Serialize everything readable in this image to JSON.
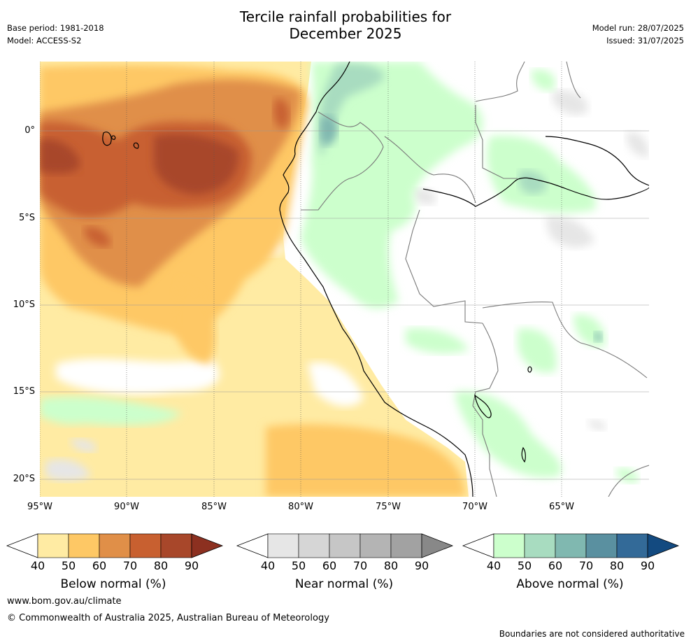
{
  "title_line1": "Tercile rainfall probabilities for",
  "title_line2": "December 2025",
  "base_period": "Base period: 1981-2018",
  "model": "Model: ACCESS-S2",
  "model_run": "Model run: 28/07/2025",
  "issued": "Issued: 31/07/2025",
  "lat_labels": [
    "0°",
    "5°S",
    "10°S",
    "15°S",
    "20°S"
  ],
  "lon_labels": [
    "95°W",
    "90°W",
    "85°W",
    "80°W",
    "75°W",
    "70°W",
    "65°W"
  ],
  "colorbars": [
    {
      "title": "Below normal (%)",
      "ticks": [
        "40",
        "50",
        "60",
        "70",
        "80",
        "90"
      ],
      "colors": [
        "#ffeba3",
        "#fec865",
        "#e08f48",
        "#c86030",
        "#a8472a",
        "#8c3020"
      ]
    },
    {
      "title": "Near normal (%)",
      "ticks": [
        "40",
        "50",
        "60",
        "70",
        "80",
        "90"
      ],
      "colors": [
        "#e6e6e6",
        "#d6d6d6",
        "#c6c6c6",
        "#b4b4b4",
        "#a2a2a2",
        "#888888"
      ]
    },
    {
      "title": "Above normal (%)",
      "ticks": [
        "40",
        "50",
        "60",
        "70",
        "80",
        "90"
      ],
      "colors": [
        "#ccffcc",
        "#a8dcc0",
        "#80b8b0",
        "#5a90a0",
        "#336a98",
        "#134a80"
      ]
    }
  ],
  "footer_url": "www.bom.gov.au/climate",
  "copyright": "© Commonwealth of Australia 2025, Australian Bureau of Meteorology",
  "disclaimer": "Boundaries are not considered authoritative"
}
